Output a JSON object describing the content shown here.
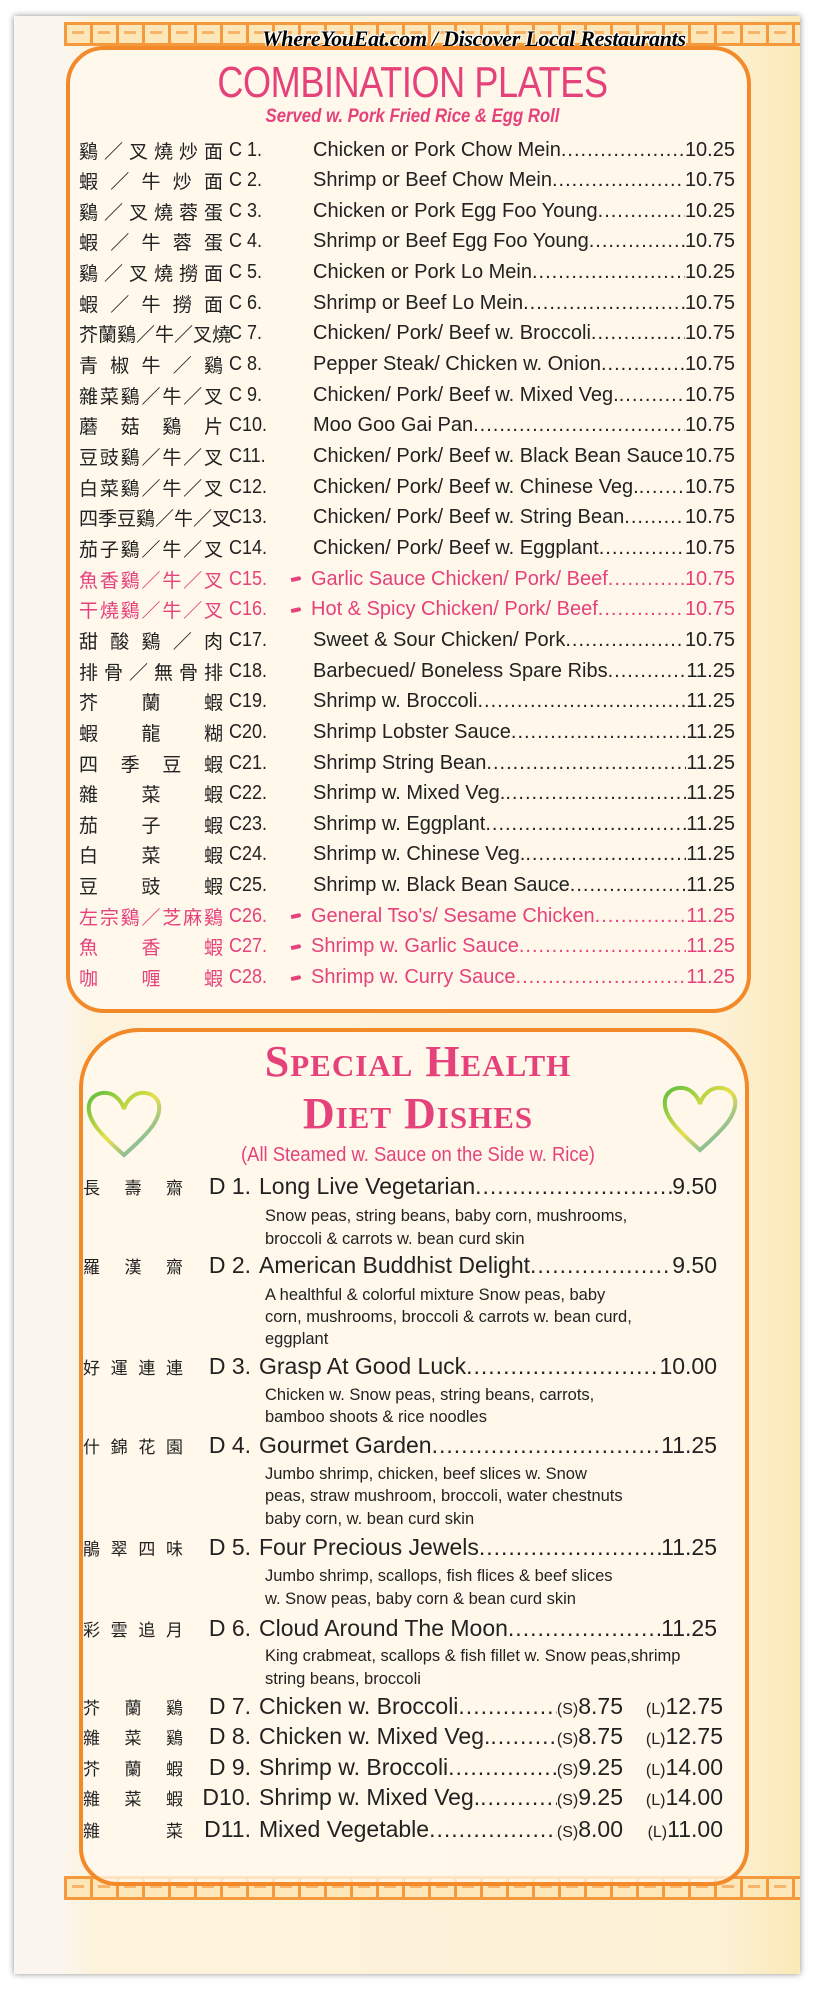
{
  "watermark": "WhereYouEat.com / Discover Local Restaurants",
  "colors": {
    "accent_pink": "#e5417b",
    "border_orange": "#f28a2a",
    "paper": "#fdf1d6"
  },
  "combination": {
    "title": "COMBINATION PLATES",
    "subtitle": "Served w. Pork Fried Rice & Egg Roll",
    "items": [
      {
        "chinese": "鷄／叉燒炒面",
        "code": "C 1.",
        "name": "Chicken or Pork Chow Mein",
        "price": "10.25"
      },
      {
        "chinese": "蝦／牛炒面",
        "code": "C 2.",
        "name": "Shrimp or Beef Chow Mein",
        "price": "10.75"
      },
      {
        "chinese": "鷄／叉燒蓉蛋",
        "code": "C 3.",
        "name": "Chicken or Pork Egg Foo Young",
        "price": "10.25"
      },
      {
        "chinese": "蝦／牛蓉蛋",
        "code": "C 4.",
        "name": "Shrimp or Beef  Egg Foo Young",
        "price": "10.75"
      },
      {
        "chinese": "鷄／叉燒撈面",
        "code": "C 5.",
        "name": "Chicken or Pork Lo Mein",
        "price": "10.25"
      },
      {
        "chinese": "蝦／牛撈面",
        "code": "C 6.",
        "name": "Shrimp or Beef   Lo Mein",
        "price": "10.75"
      },
      {
        "chinese": "芥蘭鷄／牛／叉燒",
        "code": "C 7.",
        "name": "Chicken/ Pork/ Beef w. Broccoli",
        "price": "10.75"
      },
      {
        "chinese": "青椒牛／鷄",
        "code": "C 8.",
        "name": "Pepper Steak/ Chicken w. Onion",
        "price": "10.75"
      },
      {
        "chinese": "雜菜鷄／牛／叉",
        "code": "C 9.",
        "name": "Chicken/ Pork/ Beef w. Mixed Veg.",
        "price": "10.75"
      },
      {
        "chinese": "蘑菇鷄片",
        "code": "C10.",
        "name": "Moo Goo Gai Pan",
        "price": "10.75"
      },
      {
        "chinese": "豆豉鷄／牛／叉",
        "code": "C11.",
        "name": "Chicken/ Pork/ Beef w. Black Bean Sauce",
        "price": "10.75"
      },
      {
        "chinese": "白菜鷄／牛／叉",
        "code": "C12.",
        "name": "Chicken/ Pork/ Beef w. Chinese Veg.",
        "price": "10.75"
      },
      {
        "chinese": "四季豆鷄／牛／叉",
        "code": "C13.",
        "name": "Chicken/ Pork/ Beef w. String Bean",
        "price": "10.75"
      },
      {
        "chinese": "茄子鷄／牛／叉",
        "code": "C14.",
        "name": "Chicken/ Pork/ Beef w. Eggplant",
        "price": "10.75"
      },
      {
        "chinese": "魚香鷄／牛／叉",
        "code": "C15.",
        "name": "Garlic Sauce Chicken/ Pork/ Beef",
        "price": "10.75",
        "spicy": true
      },
      {
        "chinese": "干燒鷄／牛／叉",
        "code": "C16.",
        "name": "Hot & Spicy Chicken/ Pork/ Beef",
        "price": "10.75",
        "spicy": true
      },
      {
        "chinese": "甜酸鷄／肉",
        "code": "C17.",
        "name": "Sweet & Sour Chicken/ Pork",
        "price": "10.75"
      },
      {
        "chinese": "排骨／無骨排",
        "code": "C18.",
        "name": "Barbecued/ Boneless Spare Ribs",
        "price": "11.25"
      },
      {
        "chinese": "芥蘭蝦",
        "code": "C19.",
        "name": "Shrimp w. Broccoli",
        "price": "11.25"
      },
      {
        "chinese": "蝦龍糊",
        "code": "C20.",
        "name": "Shrimp Lobster Sauce",
        "price": "11.25"
      },
      {
        "chinese": "四季豆蝦",
        "code": "C21.",
        "name": "Shrimp String Bean",
        "price": "11.25"
      },
      {
        "chinese": "雜菜蝦",
        "code": "C22.",
        "name": "Shrimp w. Mixed Veg.",
        "price": "11.25"
      },
      {
        "chinese": "茄子蝦",
        "code": "C23.",
        "name": "Shrimp w. Eggplant",
        "price": "11.25"
      },
      {
        "chinese": "白菜蝦",
        "code": "C24.",
        "name": "Shrimp w. Chinese Veg.",
        "price": "11.25"
      },
      {
        "chinese": "豆豉蝦",
        "code": "C25.",
        "name": "Shrimp w. Black  Bean  Sauce",
        "price": "11.25"
      },
      {
        "chinese": "左宗鷄／芝麻鷄",
        "code": "C26.",
        "name": "General Tso's/ Sesame Chicken",
        "price": "11.25",
        "spicy": true
      },
      {
        "chinese": "魚香蝦",
        "code": "C27.",
        "name": "Shrimp w. Garlic Sauce",
        "price": "11.25",
        "spicy": true
      },
      {
        "chinese": "咖喱蝦",
        "code": "C28.",
        "name": "Shrimp w. Curry Sauce",
        "price": "11.25",
        "spicy": true
      }
    ]
  },
  "health": {
    "title_line1": "Special Health",
    "title_line2": "Diet Dishes",
    "subtitle": "(All Steamed w. Sauce on the Side w. Rice)",
    "items": [
      {
        "chinese": "長壽齋",
        "code": "D 1.",
        "name": "Long Live Vegetarian",
        "price": "9.50",
        "desc": [
          "Snow peas, string beans, baby corn, mushrooms,",
          "broccoli & carrots w. bean curd skin"
        ]
      },
      {
        "chinese": "羅漢齋",
        "code": "D 2.",
        "name": "American Buddhist Delight",
        "price": "9.50",
        "desc": [
          "A healthful & colorful mixture Snow peas, baby",
          "corn, mushrooms, broccoli & carrots w. bean curd,",
          "eggplant"
        ]
      },
      {
        "chinese": "好運連連",
        "code": "D 3.",
        "name": "Grasp At Good Luck",
        "price": "10.00",
        "desc": [
          "Chicken w. Snow peas, string beans,  carrots,",
          "bamboo shoots & rice noodles"
        ]
      },
      {
        "chinese": "什錦花園",
        "code": "D 4.",
        "name": "Gourmet Garden",
        "price": "11.25",
        "desc": [
          "Jumbo shrimp, chicken, beef slices w. Snow",
          "peas, straw mushroom, broccoli, water chestnuts",
          "baby corn, w. bean curd skin"
        ]
      },
      {
        "chinese": "鵑翠四味",
        "code": "D 5.",
        "name": "Four Precious Jewels",
        "price": "11.25",
        "desc": [
          "Jumbo shrimp, scallops, fish flices & beef slices",
          "w. Snow peas, baby corn & bean curd skin"
        ]
      },
      {
        "chinese": "彩雲追月",
        "code": "D 6.",
        "name": "Cloud Around The Moon",
        "price": "11.25",
        "desc": [
          "King crabmeat, scallops & fish fillet w. Snow peas,shrimp",
          "string beans, broccoli"
        ]
      },
      {
        "chinese": "芥蘭鷄",
        "code": "D 7.",
        "name": "Chicken w. Broccoli",
        "small_label": "(S)",
        "small": "8.75",
        "large_label": "(L)",
        "large": "12.75"
      },
      {
        "chinese": "雜菜鷄",
        "code": "D 8.",
        "name": "Chicken w. Mixed Veg.",
        "small_label": "(S)",
        "small": "8.75",
        "large_label": "(L)",
        "large": "12.75"
      },
      {
        "chinese": "芥蘭蝦",
        "code": "D 9.",
        "name": "Shrimp w. Broccoli",
        "small_label": "(S)",
        "small": "9.25",
        "large_label": "(L)",
        "large": "14.00"
      },
      {
        "chinese": "雜菜蝦",
        "code": "D10.",
        "name": "Shrimp w. Mixed Veg.",
        "small_label": "(S)",
        "small": "9.25",
        "large_label": "(L)",
        "large": "14.00"
      },
      {
        "chinese": "雜菜",
        "code": "D11.",
        "name": "Mixed Vegetable",
        "small_label": "(S)",
        "small": "8.00",
        "large_label": "(L)",
        "large": "11.00"
      }
    ]
  }
}
